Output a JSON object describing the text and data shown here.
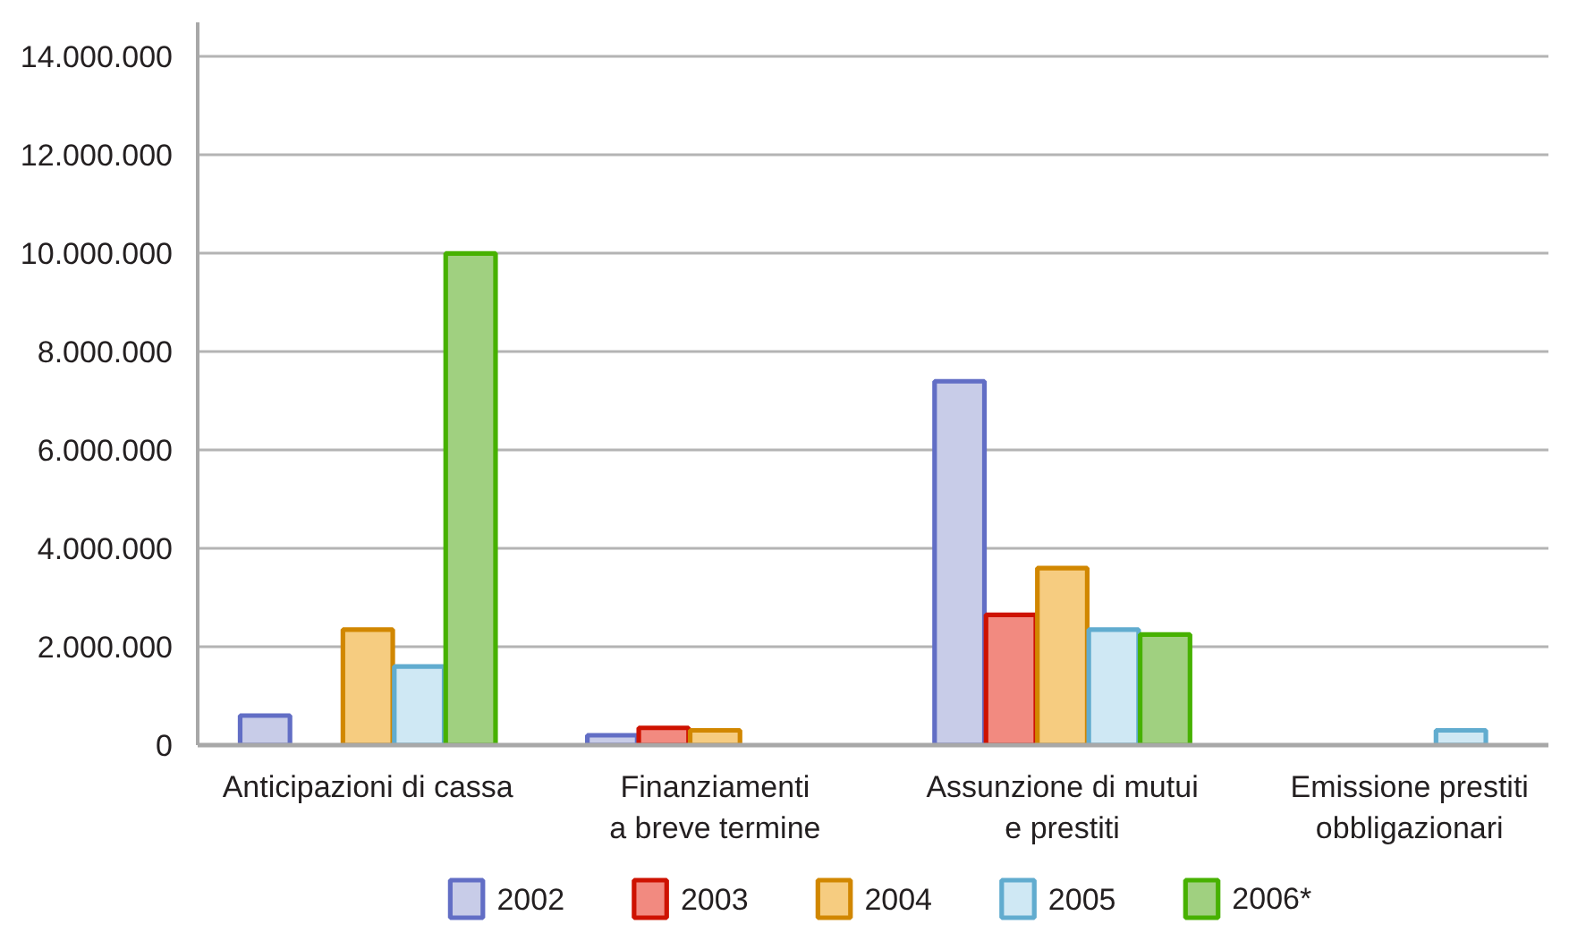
{
  "chart_data": {
    "type": "bar",
    "categories": [
      "Anticipazioni di cassa",
      "Finanziamenti\na breve termine",
      "Assunzione di mutui\ne prestiti",
      "Emissione prestiti\nobbligazionari"
    ],
    "series": [
      {
        "name": "2002",
        "color": "#c8cce8",
        "values": [
          600000,
          200000,
          7400000,
          null
        ]
      },
      {
        "name": "2003",
        "color": "#f28a80",
        "values": [
          null,
          350000,
          2650000,
          null
        ]
      },
      {
        "name": "2004",
        "color": "#f6cc80",
        "values": [
          2350000,
          300000,
          3600000,
          null
        ]
      },
      {
        "name": "2005",
        "color": "#cfe8f4",
        "values": [
          1600000,
          null,
          2350000,
          300000
        ]
      },
      {
        "name": "2006*",
        "color": "#a0d080",
        "values": [
          10000000,
          null,
          2250000,
          null
        ]
      }
    ],
    "ylim": [
      0,
      14700000
    ],
    "yticks": [
      0,
      {
        "value": 2000000,
        "label": "2.000.000"
      },
      {
        "value": 4000000,
        "label": "4.000.000"
      },
      {
        "value": 6000000,
        "label": "6.000.000"
      },
      {
        "value": 8000000,
        "label": "8.000.000"
      },
      {
        "value": 10000000,
        "label": "10.000.000"
      },
      {
        "value": 12000000,
        "label": "12.000.000"
      },
      {
        "value": 14000000,
        "label": "14.000.000"
      }
    ],
    "grid": "y",
    "legend": "bottom"
  }
}
